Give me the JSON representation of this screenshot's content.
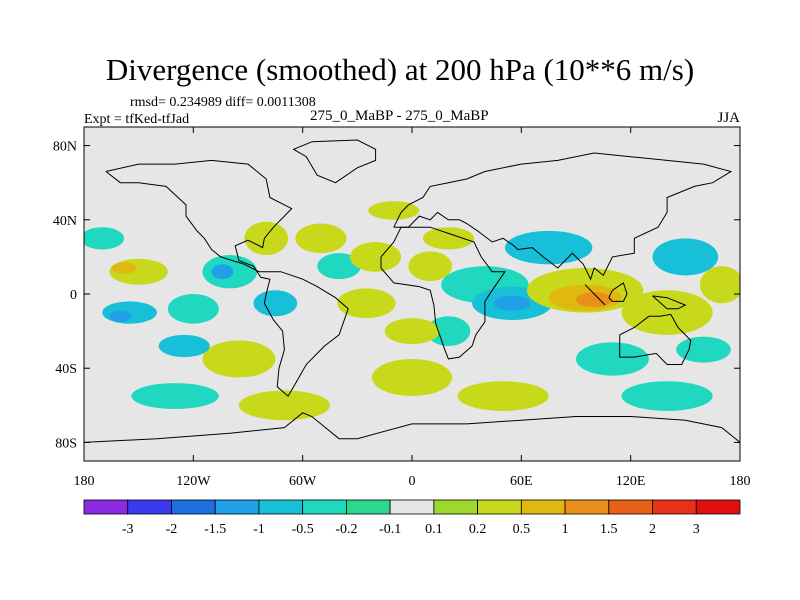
{
  "chart_data": {
    "type": "heatmap",
    "title": "Divergence (smoothed) at 200 hPa (10**6 m/s)",
    "stats": "rmsd= 0.234989 diff= 0.0011308",
    "experiment": "Expt = tfKed-tfJad",
    "center_label": "275_0_MaBP - 275_0_MaBP",
    "season": "JJA",
    "xlim": [
      -180,
      180
    ],
    "ylim": [
      -90,
      90
    ],
    "x_ticks": [
      {
        "value": -180,
        "label": "180"
      },
      {
        "value": -120,
        "label": "120W"
      },
      {
        "value": -60,
        "label": "60W"
      },
      {
        "value": 0,
        "label": "0"
      },
      {
        "value": 60,
        "label": "60E"
      },
      {
        "value": 120,
        "label": "120E"
      },
      {
        "value": 180,
        "label": "180"
      }
    ],
    "y_ticks": [
      {
        "value": 80,
        "label": "80N"
      },
      {
        "value": 40,
        "label": "40N"
      },
      {
        "value": 0,
        "label": "0"
      },
      {
        "value": -40,
        "label": "40S"
      },
      {
        "value": -80,
        "label": "80S"
      }
    ],
    "colorbar": {
      "levels": [
        "-3",
        "-2",
        "-1.5",
        "-1",
        "-0.5",
        "-0.2",
        "-0.1",
        "0.1",
        "0.2",
        "0.5",
        "1",
        "1.5",
        "2",
        "3"
      ],
      "colors": [
        "#8a2be2",
        "#3a3af0",
        "#1e6fe0",
        "#1fa0e8",
        "#18bfd8",
        "#20d8c0",
        "#2cd88c",
        "#e6e6e6",
        "#9ed82c",
        "#c8d81a",
        "#e0b810",
        "#e8901a",
        "#e86018",
        "#e83218",
        "#e01010"
      ]
    },
    "field_patches": [
      {
        "lon": -150,
        "lat": 12,
        "rx": 16,
        "ry": 7,
        "level": 9
      },
      {
        "lon": -158,
        "lat": 14,
        "rx": 7,
        "ry": 3,
        "level": 10
      },
      {
        "lon": -155,
        "lat": -10,
        "rx": 15,
        "ry": 6,
        "level": 4
      },
      {
        "lon": -160,
        "lat": -12,
        "rx": 6,
        "ry": 3,
        "level": 3
      },
      {
        "lon": -120,
        "lat": -8,
        "rx": 14,
        "ry": 8,
        "level": 5
      },
      {
        "lon": -100,
        "lat": 12,
        "rx": 15,
        "ry": 9,
        "level": 5
      },
      {
        "lon": -104,
        "lat": 12,
        "rx": 6,
        "ry": 4,
        "level": 3
      },
      {
        "lon": -80,
        "lat": 30,
        "rx": 12,
        "ry": 9,
        "level": 9
      },
      {
        "lon": -75,
        "lat": -5,
        "rx": 12,
        "ry": 7,
        "level": 4
      },
      {
        "lon": -50,
        "lat": 30,
        "rx": 14,
        "ry": 8,
        "level": 9
      },
      {
        "lon": -40,
        "lat": 15,
        "rx": 12,
        "ry": 7,
        "level": 5
      },
      {
        "lon": -95,
        "lat": -35,
        "rx": 20,
        "ry": 10,
        "level": 9
      },
      {
        "lon": -125,
        "lat": -28,
        "rx": 14,
        "ry": 6,
        "level": 4
      },
      {
        "lon": -20,
        "lat": 20,
        "rx": 14,
        "ry": 8,
        "level": 9
      },
      {
        "lon": -25,
        "lat": -5,
        "rx": 16,
        "ry": 8,
        "level": 9
      },
      {
        "lon": 0,
        "lat": -45,
        "rx": 22,
        "ry": 10,
        "level": 9
      },
      {
        "lon": 10,
        "lat": 15,
        "rx": 12,
        "ry": 8,
        "level": 9
      },
      {
        "lon": 20,
        "lat": 30,
        "rx": 14,
        "ry": 6,
        "level": 9
      },
      {
        "lon": 20,
        "lat": -20,
        "rx": 12,
        "ry": 8,
        "level": 5
      },
      {
        "lon": 40,
        "lat": 5,
        "rx": 24,
        "ry": 10,
        "level": 5
      },
      {
        "lon": 55,
        "lat": -5,
        "rx": 22,
        "ry": 9,
        "level": 4
      },
      {
        "lon": 55,
        "lat": -5,
        "rx": 10,
        "ry": 4,
        "level": 3
      },
      {
        "lon": 75,
        "lat": 25,
        "rx": 24,
        "ry": 9,
        "level": 4
      },
      {
        "lon": 95,
        "lat": 2,
        "rx": 32,
        "ry": 12,
        "level": 9
      },
      {
        "lon": 95,
        "lat": -2,
        "rx": 20,
        "ry": 7,
        "level": 10
      },
      {
        "lon": 100,
        "lat": -3,
        "rx": 10,
        "ry": 4,
        "level": 11
      },
      {
        "lon": 140,
        "lat": -10,
        "rx": 25,
        "ry": 12,
        "level": 9
      },
      {
        "lon": 150,
        "lat": 20,
        "rx": 18,
        "ry": 10,
        "level": 4
      },
      {
        "lon": 160,
        "lat": -30,
        "rx": 15,
        "ry": 7,
        "level": 5
      },
      {
        "lon": 110,
        "lat": -35,
        "rx": 20,
        "ry": 9,
        "level": 5
      },
      {
        "lon": -70,
        "lat": -60,
        "rx": 25,
        "ry": 8,
        "level": 9
      },
      {
        "lon": -130,
        "lat": -55,
        "rx": 24,
        "ry": 7,
        "level": 5
      },
      {
        "lon": 50,
        "lat": -55,
        "rx": 25,
        "ry": 8,
        "level": 9
      },
      {
        "lon": 140,
        "lat": -55,
        "rx": 25,
        "ry": 8,
        "level": 5
      },
      {
        "lon": -10,
        "lat": 45,
        "rx": 14,
        "ry": 5,
        "level": 9
      },
      {
        "lon": 0,
        "lat": -20,
        "rx": 15,
        "ry": 7,
        "level": 9
      },
      {
        "lon": 170,
        "lat": 5,
        "rx": 12,
        "ry": 10,
        "level": 9
      },
      {
        "lon": -170,
        "lat": 30,
        "rx": 12,
        "ry": 6,
        "level": 5
      }
    ],
    "grid": false
  }
}
